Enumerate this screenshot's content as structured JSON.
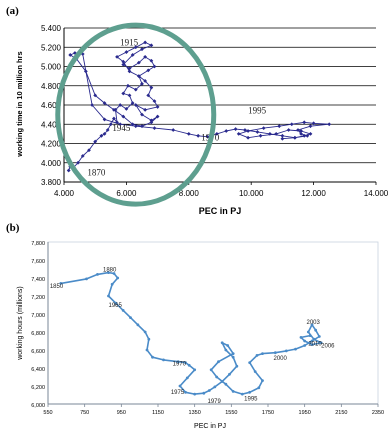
{
  "panel_a_label": "(a)",
  "panel_b_label": "(b)",
  "colors": {
    "series_a": "#2a2a8e",
    "series_b": "#4a8bc8",
    "highlight_ellipse": "#5e9f8f",
    "gridline": "#000000",
    "gridline_b": "#cfd8e3"
  },
  "chart_data": [
    {
      "type": "line",
      "panel": "a",
      "xlabel": "PEC in PJ",
      "ylabel": "working time in 10 million hrs",
      "xlim": [
        4000,
        14000
      ],
      "ylim": [
        3.8,
        5.4
      ],
      "x_ticks": [
        "4.000",
        "6.000",
        "8.000",
        "10.000",
        "12.000",
        "14.000"
      ],
      "y_ticks": [
        "3.800",
        "4.000",
        "4.200",
        "4.400",
        "4.600",
        "4.800",
        "5.000",
        "5.200",
        "5.400"
      ],
      "grid": "horizontal",
      "annotations": [
        {
          "text": "1915",
          "x": 5800,
          "y": 5.22
        },
        {
          "text": "1995",
          "x": 9900,
          "y": 4.51
        },
        {
          "text": "1945",
          "x": 5550,
          "y": 4.33
        },
        {
          "text": "1970",
          "x": 8400,
          "y": 4.23
        },
        {
          "text": "1870",
          "x": 4750,
          "y": 3.87
        }
      ],
      "highlight": {
        "shape": "ellipse",
        "cx": 6300,
        "cy": 4.5,
        "rx": 2500,
        "ry": 0.93
      },
      "series": [
        {
          "x": [
            4150,
            4200,
            4300,
            4450,
            4600,
            4800,
            5000,
            5200,
            5300,
            5400,
            5500,
            5600,
            5700,
            5650,
            5800,
            6000,
            6200,
            6100,
            5900,
            6050,
            6300,
            6500,
            6400,
            6700,
            6900,
            6800,
            6600,
            6400,
            6100,
            5900,
            6200,
            6500,
            6800,
            6600,
            6300,
            6000,
            5700,
            5900,
            6100,
            6400,
            6600,
            6800,
            6700,
            6900,
            7000,
            6600,
            6300,
            6500,
            6800,
            7000,
            6800,
            6500,
            6200,
            5900,
            5600,
            5300,
            5000,
            4700,
            4400,
            4200,
            4350,
            4600,
            4900,
            5300,
            5800,
            6300,
            6900,
            7500,
            8000,
            8300,
            8600,
            8900,
            9200,
            9500,
            9800,
            10200,
            10600,
            11000,
            11400,
            11700,
            11900,
            11600,
            11200,
            10800,
            10300,
            9900,
            9600,
            9900,
            10400,
            10900,
            11300,
            11700,
            12000,
            12500,
            11900,
            11500,
            11600,
            11800,
            11400,
            11000
          ],
          "y": [
            3.92,
            3.96,
            3.95,
            4.0,
            4.07,
            4.13,
            4.22,
            4.28,
            4.3,
            4.34,
            4.4,
            4.46,
            4.42,
            4.55,
            4.6,
            4.56,
            4.62,
            4.7,
            4.72,
            4.8,
            4.76,
            4.82,
            4.9,
            4.96,
            5.0,
            5.06,
            5.1,
            5.04,
            4.98,
            5.02,
            5.12,
            5.18,
            5.22,
            5.25,
            5.2,
            5.15,
            5.1,
            5.05,
            4.95,
            4.9,
            4.85,
            4.78,
            4.7,
            4.64,
            4.58,
            4.55,
            4.6,
            4.5,
            4.44,
            4.48,
            4.42,
            4.38,
            4.4,
            4.48,
            4.55,
            4.62,
            4.7,
            4.95,
            5.08,
            5.12,
            5.14,
            5.13,
            4.6,
            4.45,
            4.4,
            4.38,
            4.36,
            4.34,
            4.3,
            4.28,
            4.27,
            4.3,
            4.33,
            4.35,
            4.34,
            4.32,
            4.3,
            4.28,
            4.26,
            4.28,
            4.3,
            4.33,
            4.34,
            4.3,
            4.28,
            4.26,
            4.3,
            4.33,
            4.36,
            4.38,
            4.4,
            4.42,
            4.41,
            4.4,
            4.38,
            4.34,
            4.3,
            4.28,
            4.26,
            4.25
          ]
        }
      ]
    },
    {
      "type": "line",
      "panel": "b",
      "xlabel": "PEC  in PJ",
      "ylabel": "working hours (millions)",
      "xlim": [
        550,
        2350
      ],
      "ylim": [
        6000,
        7800
      ],
      "x_ticks": [
        "550",
        "750",
        "950",
        "1150",
        "1350",
        "1550",
        "1750",
        "1950",
        "2150",
        "2350"
      ],
      "y_ticks": [
        "6,000",
        "6,200",
        "6,400",
        "6,600",
        "6,800",
        "7,000",
        "7,200",
        "7,400",
        "7,600",
        "7,800"
      ],
      "grid": "none",
      "annotations": [
        {
          "text": "1850",
          "x": 560,
          "y": 7290
        },
        {
          "text": "1880",
          "x": 850,
          "y": 7470
        },
        {
          "text": "1965",
          "x": 880,
          "y": 7080
        },
        {
          "text": "1970",
          "x": 1230,
          "y": 6430
        },
        {
          "text": "1975",
          "x": 1220,
          "y": 6110
        },
        {
          "text": "1979",
          "x": 1420,
          "y": 6010
        },
        {
          "text": "1995",
          "x": 1620,
          "y": 6040
        },
        {
          "text": "2000",
          "x": 1780,
          "y": 6490
        },
        {
          "text": "2003",
          "x": 1960,
          "y": 6890
        },
        {
          "text": "2010",
          "x": 1970,
          "y": 6650
        },
        {
          "text": "2006",
          "x": 2040,
          "y": 6630
        }
      ],
      "series": [
        {
          "x": [
            620,
            760,
            820,
            880,
            910,
            930,
            900,
            880,
            920,
            960,
            1000,
            1040,
            1080,
            1100,
            1090,
            1120,
            1180,
            1260,
            1300,
            1320,
            1350,
            1310,
            1270,
            1300,
            1350,
            1400,
            1430,
            1460,
            1500,
            1540,
            1580,
            1560,
            1520,
            1500,
            1530,
            1560,
            1480,
            1440,
            1470,
            1520,
            1560,
            1610,
            1650,
            1700,
            1720,
            1680,
            1650,
            1690,
            1720,
            1790,
            1850,
            1900,
            1950,
            1990,
            2030,
            2010,
            1990,
            1970,
            2000,
            2040,
            1990,
            1950,
            1930,
            1980
          ],
          "y": [
            7340,
            7390,
            7440,
            7460,
            7450,
            7400,
            7330,
            7200,
            7120,
            7040,
            6960,
            6880,
            6800,
            6720,
            6600,
            6520,
            6490,
            6470,
            6460,
            6430,
            6380,
            6290,
            6200,
            6130,
            6110,
            6120,
            6150,
            6190,
            6250,
            6330,
            6420,
            6520,
            6600,
            6680,
            6650,
            6560,
            6470,
            6380,
            6300,
            6220,
            6140,
            6110,
            6130,
            6180,
            6260,
            6360,
            6460,
            6540,
            6560,
            6570,
            6590,
            6610,
            6650,
            6700,
            6750,
            6820,
            6880,
            6800,
            6720,
            6680,
            6660,
            6700,
            6740,
            6760
          ]
        }
      ]
    }
  ]
}
